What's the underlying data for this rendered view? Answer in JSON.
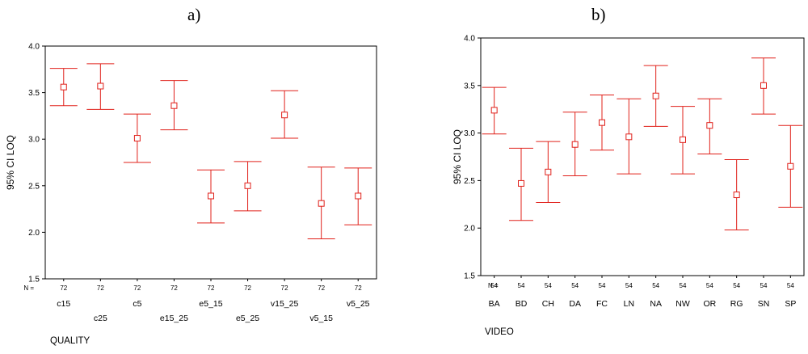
{
  "chart_data": [
    {
      "type": "errorbar",
      "panel_label": "a)",
      "xlabel": "QUALITY",
      "ylabel": "95% CI LOQ",
      "ylim": [
        1.5,
        4.0
      ],
      "yticks": [
        "1.5",
        "2.0",
        "2.5",
        "3.0",
        "3.5",
        "4.0"
      ],
      "n_label": "N =",
      "categories": [
        "c15",
        "c25",
        "c5",
        "e15_25",
        "e5_15",
        "e5_25",
        "v15_25",
        "v5_15",
        "v5_25"
      ],
      "n": [
        "72",
        "72",
        "72",
        "72",
        "72",
        "72",
        "72",
        "72",
        "72"
      ],
      "mean": [
        3.56,
        3.57,
        3.01,
        3.36,
        2.39,
        2.5,
        3.26,
        2.31,
        2.39
      ],
      "lower": [
        3.36,
        3.32,
        2.75,
        3.1,
        2.1,
        2.23,
        3.01,
        1.93,
        2.08
      ],
      "upper": [
        3.76,
        3.81,
        3.27,
        3.63,
        2.67,
        2.76,
        3.52,
        2.7,
        2.69
      ],
      "color": "#e0201a"
    },
    {
      "type": "errorbar",
      "panel_label": "b)",
      "xlabel": "VIDEO",
      "ylabel": "95% CI LOQ",
      "ylim": [
        1.5,
        4.0
      ],
      "yticks": [
        "1.5",
        "2.0",
        "2.5",
        "3.0",
        "3.5",
        "4.0"
      ],
      "n_label": "N =",
      "categories": [
        "BA",
        "BD",
        "CH",
        "DA",
        "FC",
        "LN",
        "NA",
        "NW",
        "OR",
        "RG",
        "SN",
        "SP"
      ],
      "n": [
        "54",
        "54",
        "54",
        "54",
        "54",
        "54",
        "54",
        "54",
        "54",
        "54",
        "54",
        "54"
      ],
      "mean": [
        3.24,
        2.47,
        2.59,
        2.88,
        3.11,
        2.96,
        3.39,
        2.93,
        3.08,
        2.35,
        3.5,
        2.65
      ],
      "lower": [
        2.99,
        2.08,
        2.27,
        2.55,
        2.82,
        2.57,
        3.07,
        2.57,
        2.78,
        1.98,
        3.2,
        2.22
      ],
      "upper": [
        3.48,
        2.84,
        2.91,
        3.22,
        3.4,
        3.36,
        3.71,
        3.28,
        3.36,
        2.72,
        3.79,
        3.08
      ],
      "color": "#e0201a"
    }
  ]
}
